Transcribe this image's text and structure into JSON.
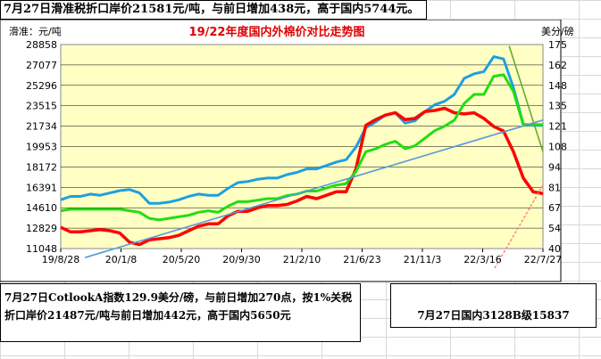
{
  "headline": "7月27日滑准税折口岸价21581元/吨，与前日增加438元，高于国内5744元。",
  "bottom_left": "7月27日CotlookA指数129.9美分/磅，与前日增加270点，按1%关税折口岸价21487元/吨与前日增加442元，高于国内5650元",
  "bottom_right": "7月27日国内3128B级15837",
  "chart_data": {
    "type": "line",
    "title": "19/22年度国内外棉价对比走势图",
    "ylabel_left": "滑准：元/吨",
    "ylabel_right": "美分/磅",
    "ylim_left": [
      11048,
      28858
    ],
    "ylim_right": [
      40,
      175
    ],
    "yticks_left": [
      "28858",
      "27077",
      "25296",
      "23515",
      "21734",
      "19953",
      "18172",
      "16391",
      "14610",
      "12829",
      "11048"
    ],
    "yticks_right": [
      "175",
      "162",
      "148",
      "135",
      "121",
      "108",
      "94",
      "81",
      "67",
      "54",
      "40"
    ],
    "xticks": [
      "19/8/28",
      "20/1/8",
      "20/5/20",
      "20/9/30",
      "21/2/10",
      "21/6/23",
      "21/11/3",
      "22/3/16",
      "22/7/27"
    ],
    "grid": true,
    "series": [
      {
        "color": "#1e9fe0",
        "axis": "left",
        "values": [
          15300,
          15600,
          15600,
          15800,
          15700,
          15900,
          16100,
          16200,
          15900,
          15000,
          15000,
          15100,
          15300,
          15600,
          15800,
          15700,
          15700,
          16300,
          16800,
          16900,
          17100,
          17200,
          17200,
          17500,
          17700,
          18000,
          18000,
          18300,
          18600,
          18800,
          19900,
          21600,
          22100,
          22700,
          22900,
          22000,
          22200,
          23000,
          23600,
          23900,
          24500,
          25900,
          26300,
          26500,
          27800,
          27600,
          25100,
          21900,
          21800,
          21800
        ]
      },
      {
        "color": "#ff0000",
        "axis": "left",
        "values": [
          12900,
          12500,
          12500,
          12600,
          12700,
          12600,
          12400,
          11600,
          11400,
          11800,
          11900,
          12000,
          12200,
          12600,
          13000,
          13200,
          13200,
          13900,
          14300,
          14300,
          14600,
          14800,
          14800,
          14900,
          15200,
          15600,
          15400,
          15700,
          16000,
          16000,
          18000,
          21800,
          22300,
          22700,
          22900,
          22300,
          22400,
          23000,
          23100,
          23300,
          22900,
          22800,
          22900,
          22400,
          21700,
          21300,
          19500,
          17200,
          16000,
          15837
        ]
      },
      {
        "color": "#22dd11",
        "axis": "right",
        "values": [
          65,
          66,
          66,
          66,
          66,
          66,
          66,
          65,
          64,
          60,
          59,
          60,
          61,
          62,
          64,
          65,
          64,
          68,
          71,
          71,
          72,
          73,
          73,
          75,
          76,
          78,
          78,
          80,
          82,
          83,
          91,
          104,
          106,
          109,
          111,
          106,
          108,
          113,
          118,
          121,
          125,
          136,
          142,
          142,
          154,
          155,
          144,
          122,
          122,
          122
        ]
      },
      {
        "color": "#66aa33",
        "axis": "right",
        "trendline": true,
        "x": [
          0.93,
          1.0
        ],
        "values": [
          174,
          104
        ]
      },
      {
        "color": "#5599dd",
        "axis": "right",
        "trendline": true,
        "x": [
          0.05,
          1.0
        ],
        "values": [
          34,
          125
        ]
      },
      {
        "color": "#ff8888",
        "axis": "right",
        "trendline": true,
        "x": [
          0.9,
          1.0
        ],
        "values": [
          27,
          82
        ]
      }
    ]
  }
}
